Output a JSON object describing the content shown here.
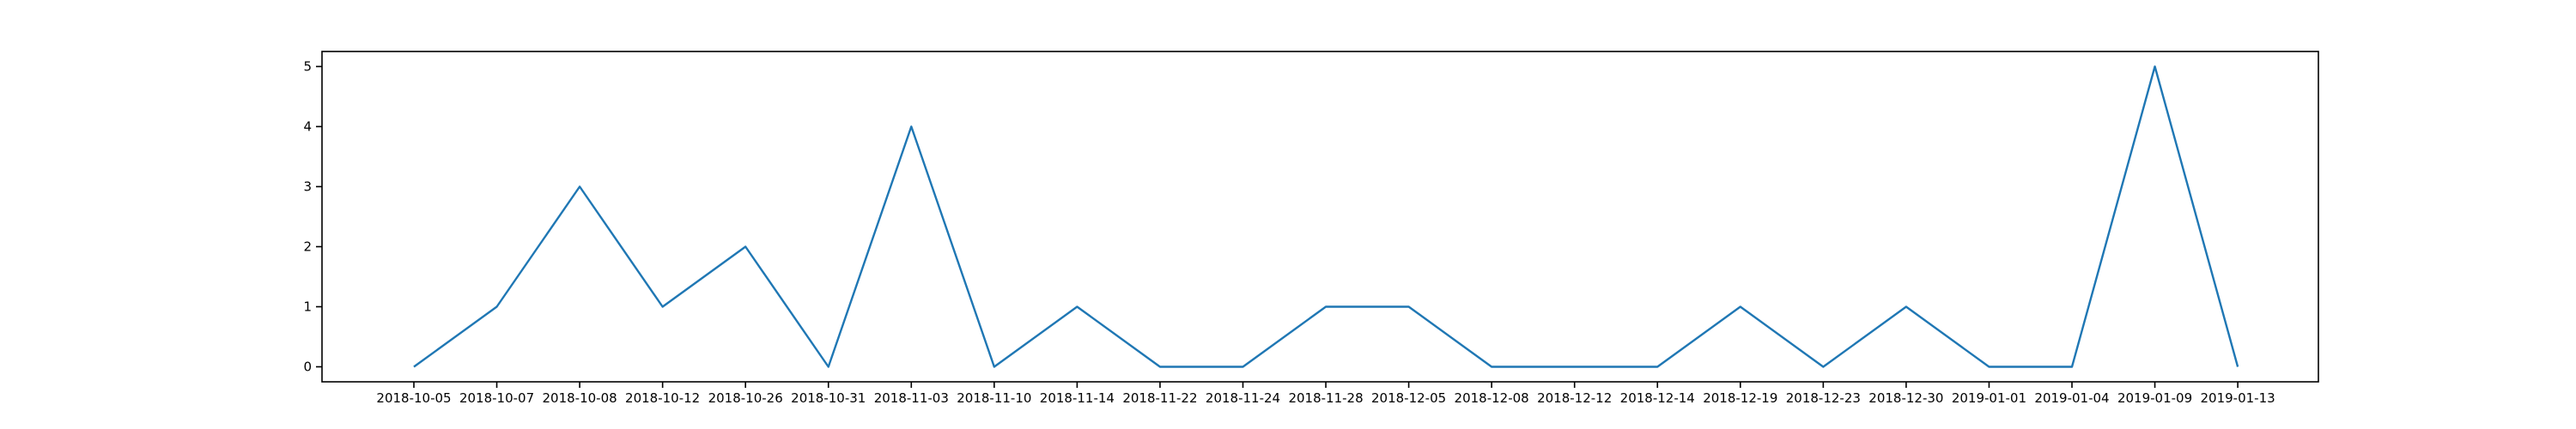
{
  "chart_data": {
    "type": "line",
    "categories": [
      "2018-10-05",
      "2018-10-07",
      "2018-10-08",
      "2018-10-12",
      "2018-10-26",
      "2018-10-31",
      "2018-11-03",
      "2018-11-10",
      "2018-11-14",
      "2018-11-22",
      "2018-11-24",
      "2018-11-28",
      "2018-12-05",
      "2018-12-08",
      "2018-12-12",
      "2018-12-14",
      "2018-12-19",
      "2018-12-23",
      "2018-12-30",
      "2019-01-01",
      "2019-01-04",
      "2019-01-09",
      "2019-01-13"
    ],
    "series": [
      {
        "values": [
          0,
          1,
          3,
          1,
          2,
          0,
          4,
          0,
          1,
          0,
          0,
          1,
          1,
          0,
          0,
          0,
          1,
          0,
          1,
          0,
          0,
          5,
          0
        ]
      }
    ],
    "ylim": [
      -0.25,
      5.25
    ],
    "yticks": [
      0,
      1,
      2,
      3,
      4,
      5
    ],
    "grid": false,
    "line_color": "#1f77b4"
  }
}
